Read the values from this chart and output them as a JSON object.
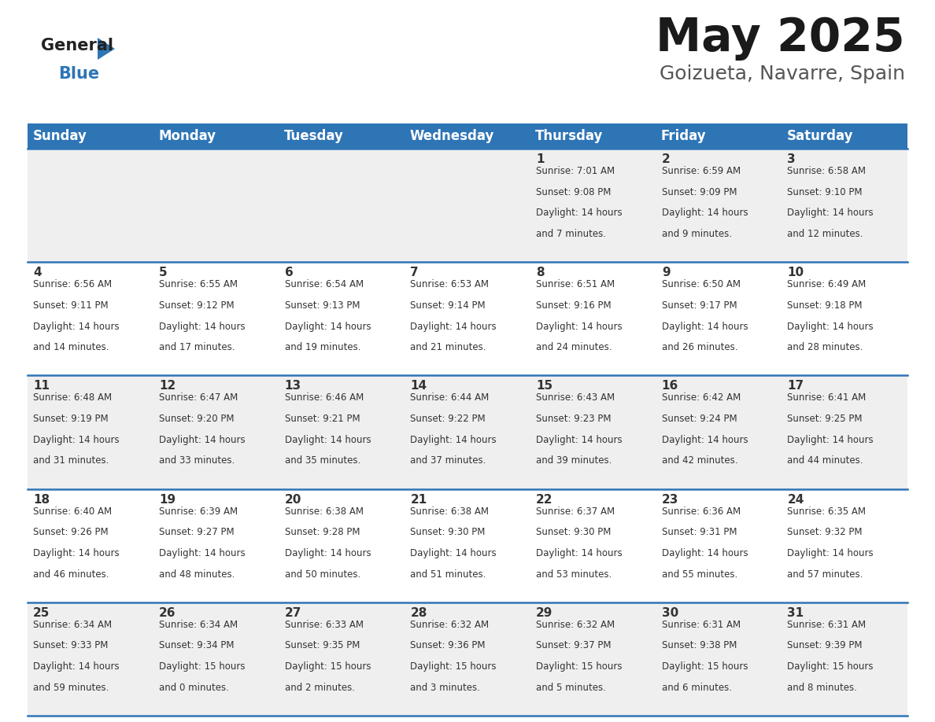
{
  "title": "May 2025",
  "subtitle": "Goizueta, Navarre, Spain",
  "header_bg": "#2E75B6",
  "header_fg": "#FFFFFF",
  "cell_bg_odd": "#EFEFEF",
  "cell_bg_even": "#FFFFFF",
  "day_headers": [
    "Sunday",
    "Monday",
    "Tuesday",
    "Wednesday",
    "Thursday",
    "Friday",
    "Saturday"
  ],
  "calendar_data": [
    [
      {
        "day": "",
        "sunrise": "",
        "sunset": "",
        "dh": 0,
        "dm": 0
      },
      {
        "day": "",
        "sunrise": "",
        "sunset": "",
        "dh": 0,
        "dm": 0
      },
      {
        "day": "",
        "sunrise": "",
        "sunset": "",
        "dh": 0,
        "dm": 0
      },
      {
        "day": "",
        "sunrise": "",
        "sunset": "",
        "dh": 0,
        "dm": 0
      },
      {
        "day": "1",
        "sunrise": "7:01 AM",
        "sunset": "9:08 PM",
        "dh": 14,
        "dm": 7
      },
      {
        "day": "2",
        "sunrise": "6:59 AM",
        "sunset": "9:09 PM",
        "dh": 14,
        "dm": 9
      },
      {
        "day": "3",
        "sunrise": "6:58 AM",
        "sunset": "9:10 PM",
        "dh": 14,
        "dm": 12
      }
    ],
    [
      {
        "day": "4",
        "sunrise": "6:56 AM",
        "sunset": "9:11 PM",
        "dh": 14,
        "dm": 14
      },
      {
        "day": "5",
        "sunrise": "6:55 AM",
        "sunset": "9:12 PM",
        "dh": 14,
        "dm": 17
      },
      {
        "day": "6",
        "sunrise": "6:54 AM",
        "sunset": "9:13 PM",
        "dh": 14,
        "dm": 19
      },
      {
        "day": "7",
        "sunrise": "6:53 AM",
        "sunset": "9:14 PM",
        "dh": 14,
        "dm": 21
      },
      {
        "day": "8",
        "sunrise": "6:51 AM",
        "sunset": "9:16 PM",
        "dh": 14,
        "dm": 24
      },
      {
        "day": "9",
        "sunrise": "6:50 AM",
        "sunset": "9:17 PM",
        "dh": 14,
        "dm": 26
      },
      {
        "day": "10",
        "sunrise": "6:49 AM",
        "sunset": "9:18 PM",
        "dh": 14,
        "dm": 28
      }
    ],
    [
      {
        "day": "11",
        "sunrise": "6:48 AM",
        "sunset": "9:19 PM",
        "dh": 14,
        "dm": 31
      },
      {
        "day": "12",
        "sunrise": "6:47 AM",
        "sunset": "9:20 PM",
        "dh": 14,
        "dm": 33
      },
      {
        "day": "13",
        "sunrise": "6:46 AM",
        "sunset": "9:21 PM",
        "dh": 14,
        "dm": 35
      },
      {
        "day": "14",
        "sunrise": "6:44 AM",
        "sunset": "9:22 PM",
        "dh": 14,
        "dm": 37
      },
      {
        "day": "15",
        "sunrise": "6:43 AM",
        "sunset": "9:23 PM",
        "dh": 14,
        "dm": 39
      },
      {
        "day": "16",
        "sunrise": "6:42 AM",
        "sunset": "9:24 PM",
        "dh": 14,
        "dm": 42
      },
      {
        "day": "17",
        "sunrise": "6:41 AM",
        "sunset": "9:25 PM",
        "dh": 14,
        "dm": 44
      }
    ],
    [
      {
        "day": "18",
        "sunrise": "6:40 AM",
        "sunset": "9:26 PM",
        "dh": 14,
        "dm": 46
      },
      {
        "day": "19",
        "sunrise": "6:39 AM",
        "sunset": "9:27 PM",
        "dh": 14,
        "dm": 48
      },
      {
        "day": "20",
        "sunrise": "6:38 AM",
        "sunset": "9:28 PM",
        "dh": 14,
        "dm": 50
      },
      {
        "day": "21",
        "sunrise": "6:38 AM",
        "sunset": "9:30 PM",
        "dh": 14,
        "dm": 51
      },
      {
        "day": "22",
        "sunrise": "6:37 AM",
        "sunset": "9:30 PM",
        "dh": 14,
        "dm": 53
      },
      {
        "day": "23",
        "sunrise": "6:36 AM",
        "sunset": "9:31 PM",
        "dh": 14,
        "dm": 55
      },
      {
        "day": "24",
        "sunrise": "6:35 AM",
        "sunset": "9:32 PM",
        "dh": 14,
        "dm": 57
      }
    ],
    [
      {
        "day": "25",
        "sunrise": "6:34 AM",
        "sunset": "9:33 PM",
        "dh": 14,
        "dm": 59
      },
      {
        "day": "26",
        "sunrise": "6:34 AM",
        "sunset": "9:34 PM",
        "dh": 15,
        "dm": 0
      },
      {
        "day": "27",
        "sunrise": "6:33 AM",
        "sunset": "9:35 PM",
        "dh": 15,
        "dm": 2
      },
      {
        "day": "28",
        "sunrise": "6:32 AM",
        "sunset": "9:36 PM",
        "dh": 15,
        "dm": 3
      },
      {
        "day": "29",
        "sunrise": "6:32 AM",
        "sunset": "9:37 PM",
        "dh": 15,
        "dm": 5
      },
      {
        "day": "30",
        "sunrise": "6:31 AM",
        "sunset": "9:38 PM",
        "dh": 15,
        "dm": 6
      },
      {
        "day": "31",
        "sunrise": "6:31 AM",
        "sunset": "9:39 PM",
        "dh": 15,
        "dm": 8
      }
    ]
  ],
  "title_fontsize": 42,
  "subtitle_fontsize": 18,
  "header_fontsize": 12,
  "day_num_fontsize": 11,
  "cell_text_fontsize": 8.5,
  "line_color": "#2E75B6",
  "text_color": "#333333",
  "subtitle_color": "#555555"
}
